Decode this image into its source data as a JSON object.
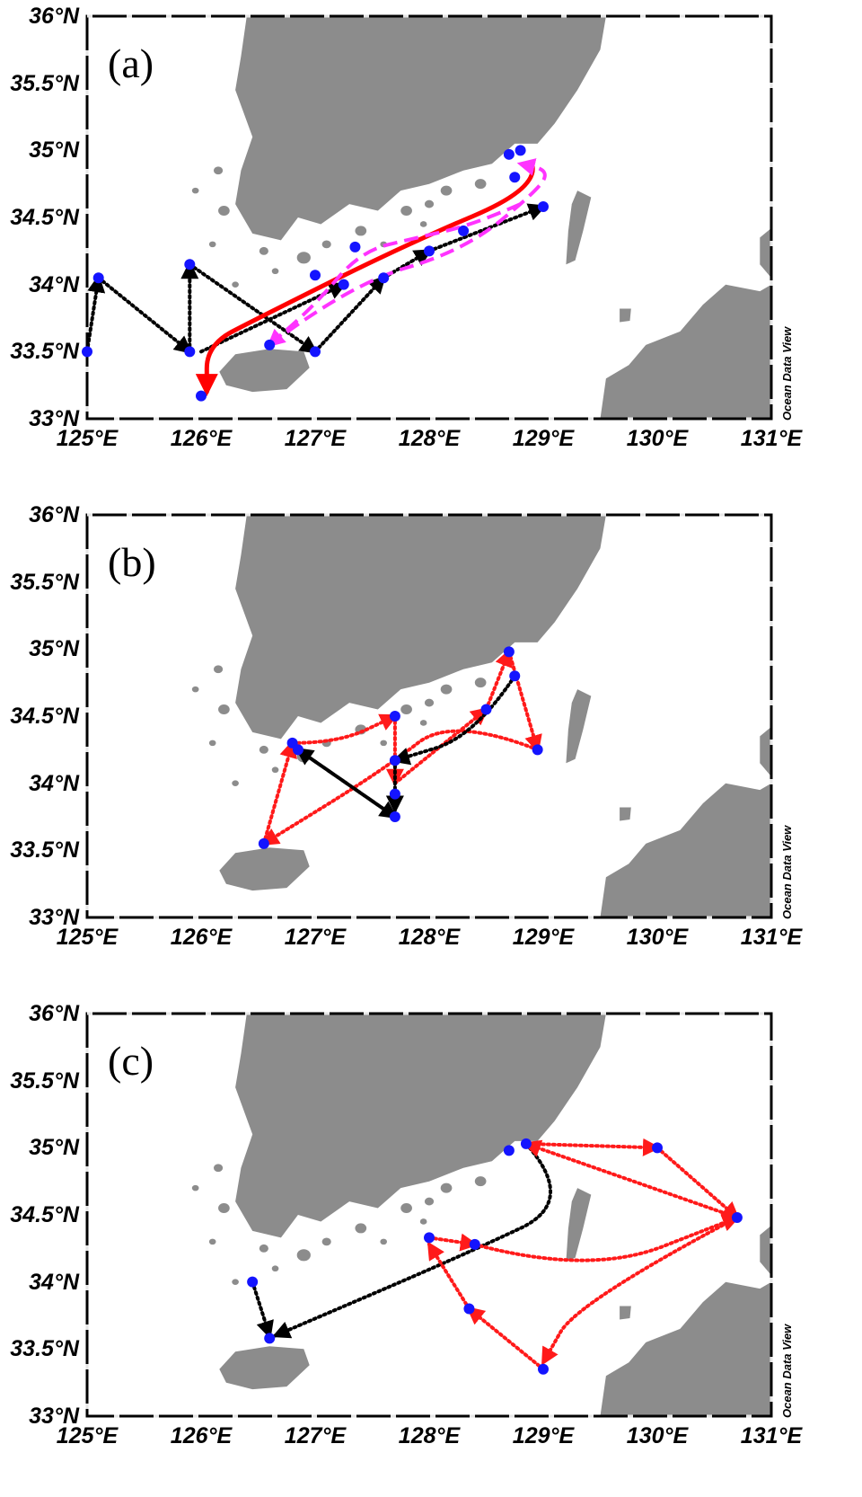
{
  "axes": {
    "lat_labels": [
      "36°N",
      "35.5°N",
      "35°N",
      "34.5°N",
      "34°N",
      "33.5°N",
      "33°N"
    ],
    "lon_labels": [
      "125°E",
      "126°E",
      "127°E",
      "128°E",
      "129°E",
      "130°E",
      "131°E"
    ],
    "lon_range": [
      125,
      131
    ],
    "lat_range": [
      33,
      36
    ]
  },
  "credit": "Ocean Data View",
  "colors": {
    "land": "#8c8c8c",
    "station": "#1414ff",
    "black_route": "#000000",
    "red_route": "#ff1a1a",
    "magenta_route": "#ff33ff",
    "red_solid": "#ff0000"
  },
  "panels": [
    {
      "letter": "(a)",
      "stations": [
        [
          125.0,
          33.5
        ],
        [
          125.1,
          34.05
        ],
        [
          125.9,
          34.15
        ],
        [
          125.9,
          33.5
        ],
        [
          126.0,
          33.17
        ],
        [
          126.6,
          33.55
        ],
        [
          127.0,
          34.07
        ],
        [
          127.0,
          33.5
        ],
        [
          127.25,
          34.0
        ],
        [
          127.35,
          34.28
        ],
        [
          127.6,
          34.05
        ],
        [
          128.0,
          34.25
        ],
        [
          128.3,
          34.4
        ],
        [
          128.7,
          34.97
        ],
        [
          128.8,
          35.0
        ],
        [
          128.75,
          34.8
        ],
        [
          129.0,
          34.58
        ]
      ],
      "routes": [
        {
          "style": "black-dot",
          "points": [
            [
              125.0,
              33.5
            ],
            [
              125.1,
              34.05
            ]
          ]
        },
        {
          "style": "black-dot",
          "points": [
            [
              125.1,
              34.05
            ],
            [
              125.9,
              33.5
            ]
          ]
        },
        {
          "style": "black-dot",
          "points": [
            [
              125.9,
              33.5
            ],
            [
              125.9,
              34.15
            ]
          ]
        },
        {
          "style": "black-dot",
          "points": [
            [
              125.9,
              34.15
            ],
            [
              127.0,
              33.5
            ]
          ]
        },
        {
          "style": "black-dot",
          "points": [
            [
              127.0,
              33.5
            ],
            [
              127.6,
              34.05
            ]
          ]
        },
        {
          "style": "black-dot",
          "points": [
            [
              127.6,
              34.05
            ],
            [
              128.0,
              34.25
            ]
          ]
        },
        {
          "style": "black-dot",
          "points": [
            [
              128.0,
              34.25
            ],
            [
              129.0,
              34.58
            ]
          ]
        },
        {
          "style": "black-dot",
          "points": [
            [
              126.0,
              33.5
            ],
            [
              127.25,
              34.0
            ]
          ]
        },
        {
          "style": "red-solid",
          "points": [
            [
              128.9,
              34.9
            ],
            [
              128.97,
              34.72
            ],
            [
              127.8,
              34.3
            ],
            [
              126.5,
              33.75
            ],
            [
              126.05,
              33.55
            ],
            [
              126.05,
              33.2
            ]
          ]
        },
        {
          "style": "magenta-dash",
          "points": [
            [
              128.8,
              34.6
            ],
            [
              128.4,
              34.45
            ],
            [
              127.9,
              34.35
            ],
            [
              127.4,
              34.25
            ],
            [
              127.0,
              33.85
            ],
            [
              126.6,
              33.55
            ]
          ]
        },
        {
          "style": "magenta-dash",
          "points": [
            [
              126.6,
              33.55
            ],
            [
              127.3,
              34.0
            ],
            [
              128.3,
              34.25
            ],
            [
              128.95,
              34.7
            ],
            [
              129.05,
              34.85
            ],
            [
              128.8,
              34.9
            ]
          ]
        }
      ]
    },
    {
      "letter": "(b)",
      "stations": [
        [
          126.55,
          33.55
        ],
        [
          126.8,
          34.3
        ],
        [
          126.85,
          34.25
        ],
        [
          127.7,
          34.5
        ],
        [
          127.7,
          34.17
        ],
        [
          127.7,
          33.92
        ],
        [
          127.7,
          33.75
        ],
        [
          128.5,
          34.55
        ],
        [
          128.7,
          34.98
        ],
        [
          128.75,
          34.8
        ],
        [
          128.95,
          34.25
        ]
      ],
      "routes": [
        {
          "style": "red-dot",
          "points": [
            [
              126.55,
              33.55
            ],
            [
              126.8,
              34.3
            ]
          ]
        },
        {
          "style": "red-dot",
          "points": [
            [
              126.8,
              34.3
            ],
            [
              127.2,
              34.3
            ],
            [
              127.7,
              34.5
            ]
          ]
        },
        {
          "style": "red-dot",
          "points": [
            [
              127.7,
              34.5
            ],
            [
              127.7,
              34.0
            ]
          ]
        },
        {
          "style": "red-dot",
          "points": [
            [
              127.7,
              34.0
            ],
            [
              128.5,
              34.55
            ]
          ]
        },
        {
          "style": "red-dot",
          "points": [
            [
              128.5,
              34.55
            ],
            [
              128.7,
              34.98
            ]
          ]
        },
        {
          "style": "red-dot",
          "points": [
            [
              128.7,
              34.98
            ],
            [
              128.95,
              34.25
            ]
          ]
        },
        {
          "style": "red-dot",
          "points": [
            [
              128.95,
              34.25
            ],
            [
              128.2,
              34.5
            ],
            [
              127.6,
              34.1
            ],
            [
              126.55,
              33.55
            ]
          ]
        },
        {
          "style": "black-dot",
          "points": [
            [
              128.75,
              34.8
            ],
            [
              128.4,
              34.35
            ],
            [
              127.7,
              34.17
            ]
          ]
        },
        {
          "style": "black-dot",
          "points": [
            [
              127.7,
              34.17
            ],
            [
              127.7,
              33.8
            ]
          ]
        },
        {
          "style": "black-dot",
          "points": [
            [
              127.7,
              33.75
            ],
            [
              126.85,
              34.25
            ]
          ]
        },
        {
          "style": "black-dot",
          "points": [
            [
              126.85,
              34.25
            ],
            [
              127.7,
              33.75
            ]
          ]
        }
      ]
    },
    {
      "letter": "(c)",
      "stations": [
        [
          126.45,
          34.0
        ],
        [
          126.6,
          33.58
        ],
        [
          128.0,
          34.33
        ],
        [
          128.4,
          34.28
        ],
        [
          128.35,
          33.8
        ],
        [
          128.7,
          34.98
        ],
        [
          128.85,
          35.03
        ],
        [
          129.0,
          33.35
        ],
        [
          130.0,
          35.0
        ],
        [
          130.7,
          34.48
        ]
      ],
      "routes": [
        {
          "style": "black-dot",
          "points": [
            [
              126.45,
              34.0
            ],
            [
              126.6,
              33.6
            ]
          ]
        },
        {
          "style": "black-dot",
          "points": [
            [
              128.85,
              35.03
            ],
            [
              129.3,
              34.6
            ],
            [
              128.3,
              34.2
            ],
            [
              126.65,
              33.6
            ]
          ]
        },
        {
          "style": "red-dot",
          "points": [
            [
              128.0,
              34.33
            ],
            [
              128.4,
              34.28
            ]
          ]
        },
        {
          "style": "red-dot",
          "points": [
            [
              128.4,
              34.28
            ],
            [
              129.4,
              34.05
            ],
            [
              130.7,
              34.48
            ]
          ]
        },
        {
          "style": "red-dot",
          "points": [
            [
              130.7,
              34.48
            ],
            [
              128.85,
              35.03
            ]
          ]
        },
        {
          "style": "red-dot",
          "points": [
            [
              128.85,
              35.03
            ],
            [
              130.0,
              35.0
            ]
          ]
        },
        {
          "style": "red-dot",
          "points": [
            [
              130.0,
              35.0
            ],
            [
              130.7,
              34.48
            ]
          ]
        },
        {
          "style": "red-dot",
          "points": [
            [
              130.7,
              34.48
            ],
            [
              129.3,
              33.85
            ],
            [
              129.0,
              33.4
            ]
          ]
        },
        {
          "style": "red-dot",
          "points": [
            [
              129.0,
              33.35
            ],
            [
              128.35,
              33.8
            ]
          ]
        },
        {
          "style": "red-dot",
          "points": [
            [
              128.35,
              33.8
            ],
            [
              128.0,
              34.28
            ]
          ]
        }
      ]
    }
  ]
}
